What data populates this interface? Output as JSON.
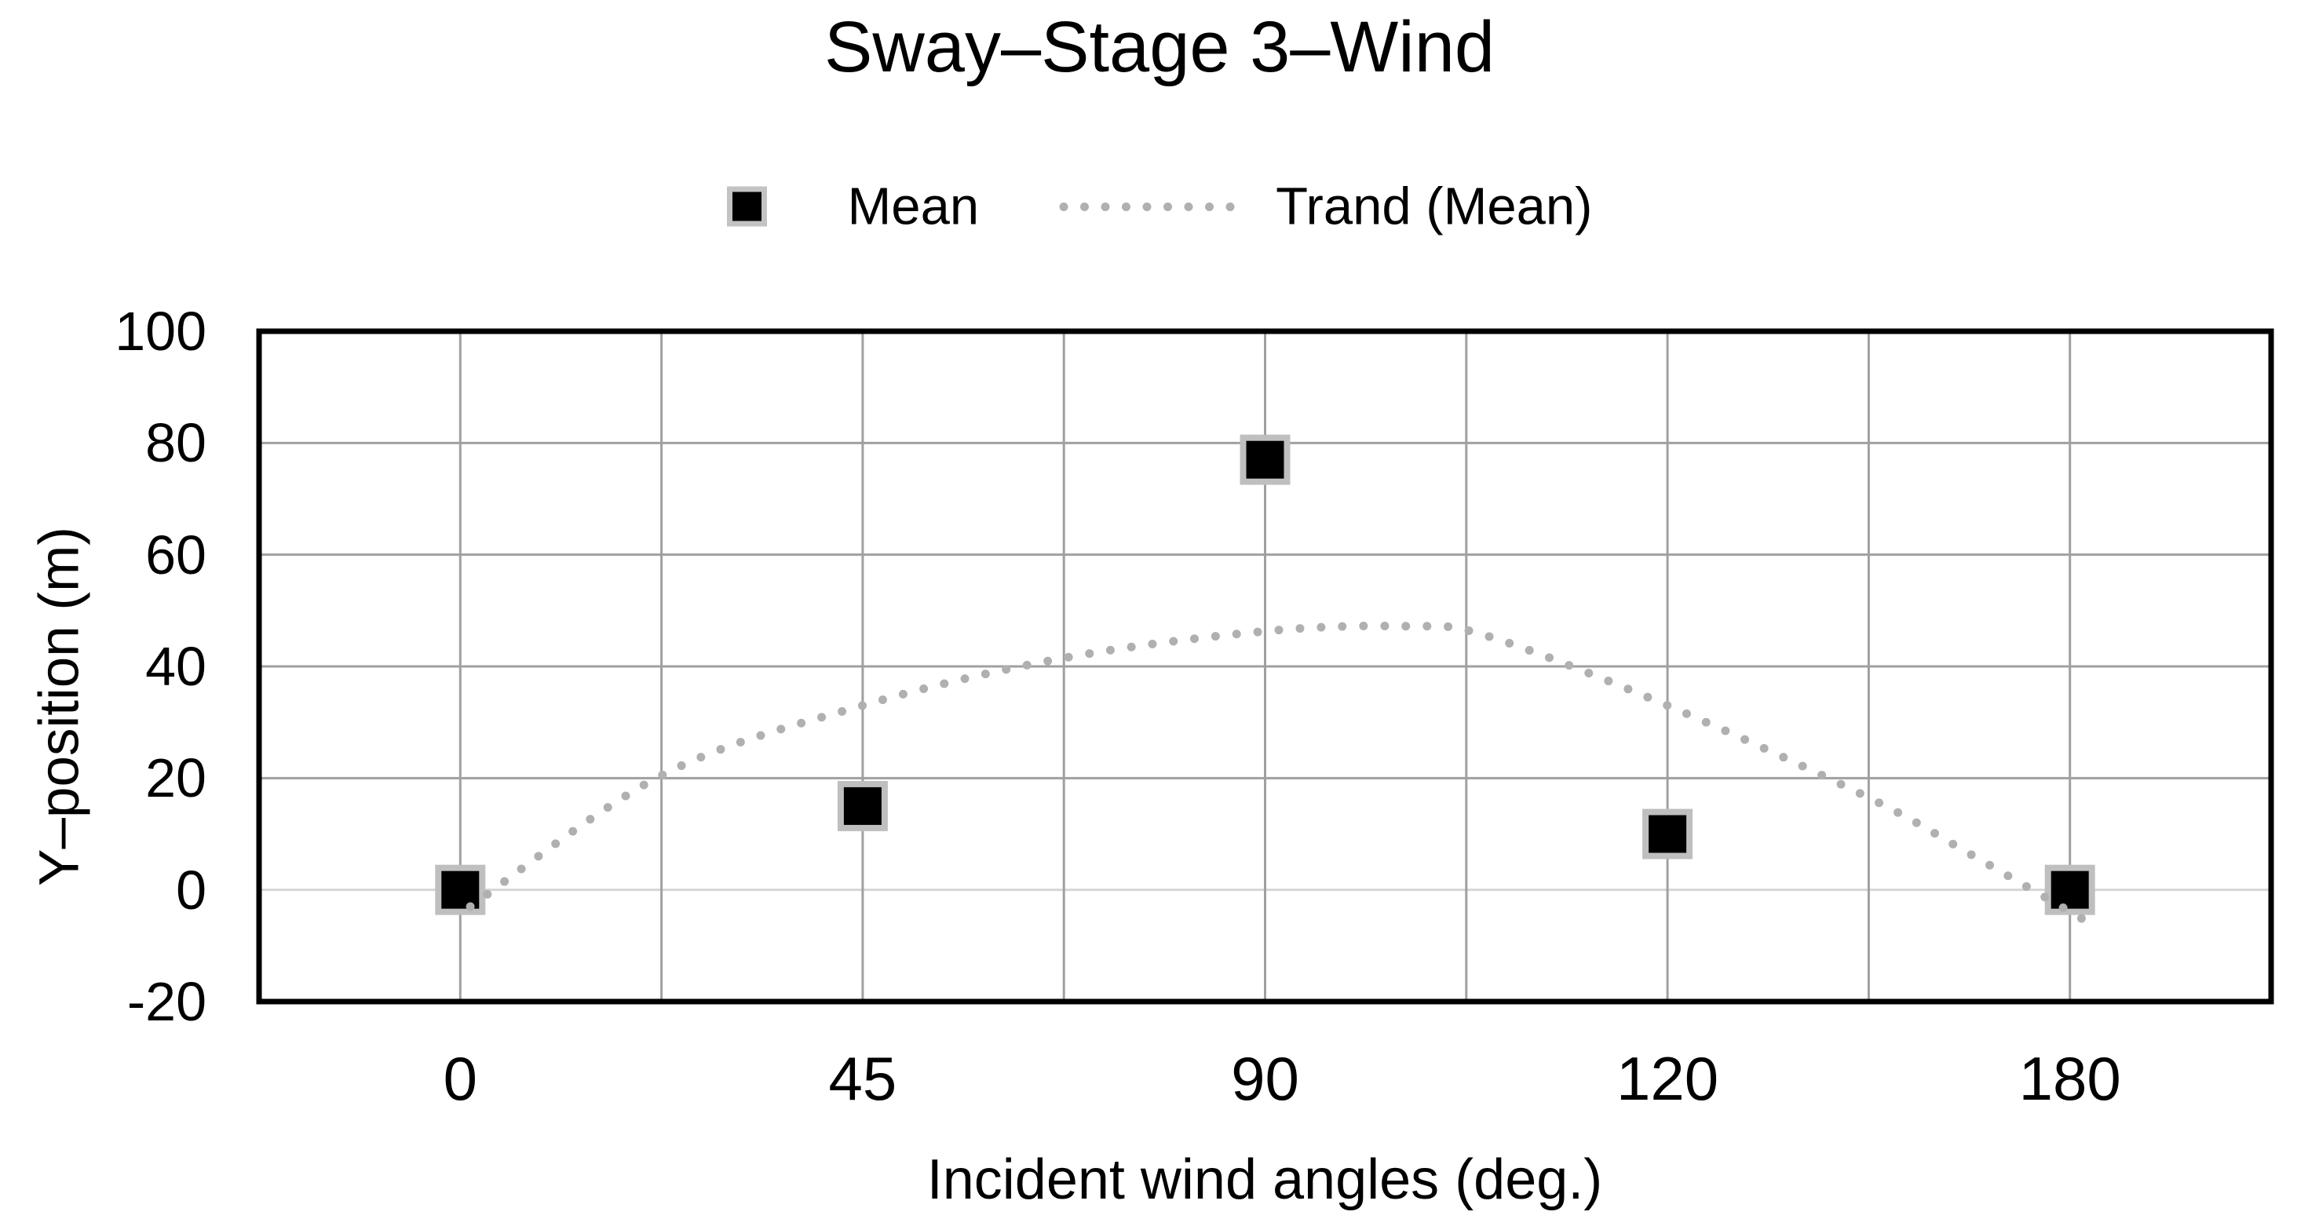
{
  "title": "Sway–Stage 3–Wind",
  "legend": {
    "mean_label": "Mean",
    "trend_label": "Trand (Mean)"
  },
  "chart_data": {
    "type": "scatter",
    "title": "Sway–Stage 3–Wind",
    "xlabel": "Incident wind angles (deg.)",
    "ylabel": "Y–position (m)",
    "categories": [
      "0",
      "45",
      "90",
      "120",
      "180"
    ],
    "yticks": [
      100,
      80,
      60,
      40,
      20,
      0,
      -20
    ],
    "ylim": [
      -20,
      100
    ],
    "grid": "both",
    "legend_position": "top-center",
    "series": [
      {
        "name": "Mean",
        "type": "scatter",
        "marker": "filled-square",
        "color": "#000000",
        "values": [
          0,
          15,
          77,
          10,
          0
        ]
      },
      {
        "name": "Trand (Mean)",
        "type": "trendline",
        "style": "dotted",
        "color": "#b0b0b0",
        "x_units_note": "x given in axis halves 0-10; category centers sit at 1,3,5,7,9",
        "points": [
          [
            1.05,
            -3
          ],
          [
            2,
            20.5
          ],
          [
            3,
            33
          ],
          [
            4,
            41.5
          ],
          [
            5,
            46.3
          ],
          [
            5.7,
            47.2
          ],
          [
            6.1,
            45.5
          ],
          [
            7,
            33
          ],
          [
            8,
            16.5
          ],
          [
            8.5,
            6.5
          ],
          [
            9.1,
            -6
          ]
        ]
      }
    ]
  },
  "colors": {
    "background": "#ffffff",
    "text": "#000000",
    "grid": "#a0a0a0",
    "zero_grid": "#d6d6d6",
    "axis_border": "#000000",
    "marker_fill": "#000000",
    "marker_border": "#bfbfbf",
    "trend": "#b0b0b0"
  }
}
